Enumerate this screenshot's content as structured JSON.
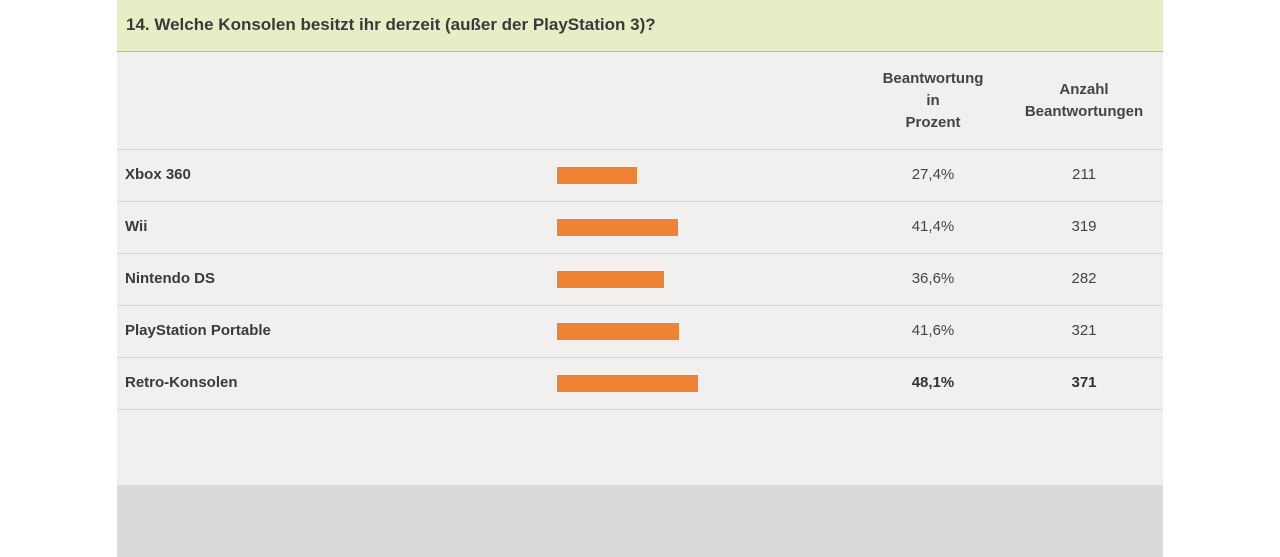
{
  "title": "14. Welche Konsolen besitzt ihr derzeit (außer der PlayStation 3)?",
  "columns": {
    "percent_header": [
      "Beantwortung",
      "in",
      "Prozent"
    ],
    "count_header": [
      "Anzahl",
      "Beantwortungen"
    ]
  },
  "colors": {
    "bar": "#ee8433",
    "title_bg": "#e6eec6",
    "panel_bg": "#f1f0ee"
  },
  "chart_data": {
    "type": "bar",
    "orientation": "horizontal",
    "title": "14. Welche Konsolen besitzt ihr derzeit (außer der PlayStation 3)?",
    "categories": [
      "Xbox 360",
      "Wii",
      "Nintendo DS",
      "PlayStation Portable",
      "Retro-Konsolen"
    ],
    "values": [
      27.4,
      41.4,
      36.6,
      41.6,
      48.1
    ],
    "percent_labels": [
      "27,4%",
      "41,4%",
      "36,6%",
      "41,6%",
      "48,1%"
    ],
    "counts": [
      211,
      319,
      282,
      321,
      371
    ],
    "highlighted_index": 4,
    "xlim": [
      0,
      100
    ],
    "grid": false
  }
}
